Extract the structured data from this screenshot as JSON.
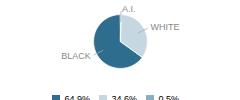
{
  "chart_data": {
    "type": "pie",
    "categories": [
      "BLACK",
      "WHITE",
      "A.I."
    ],
    "values": [
      64.9,
      34.6,
      0.5
    ],
    "value_labels": [
      "64.9%",
      "34.6%",
      "0.5%"
    ],
    "colors": [
      "#2e6d8e",
      "#c5d8e2",
      "#8bafc0"
    ],
    "legend": "bottom"
  }
}
